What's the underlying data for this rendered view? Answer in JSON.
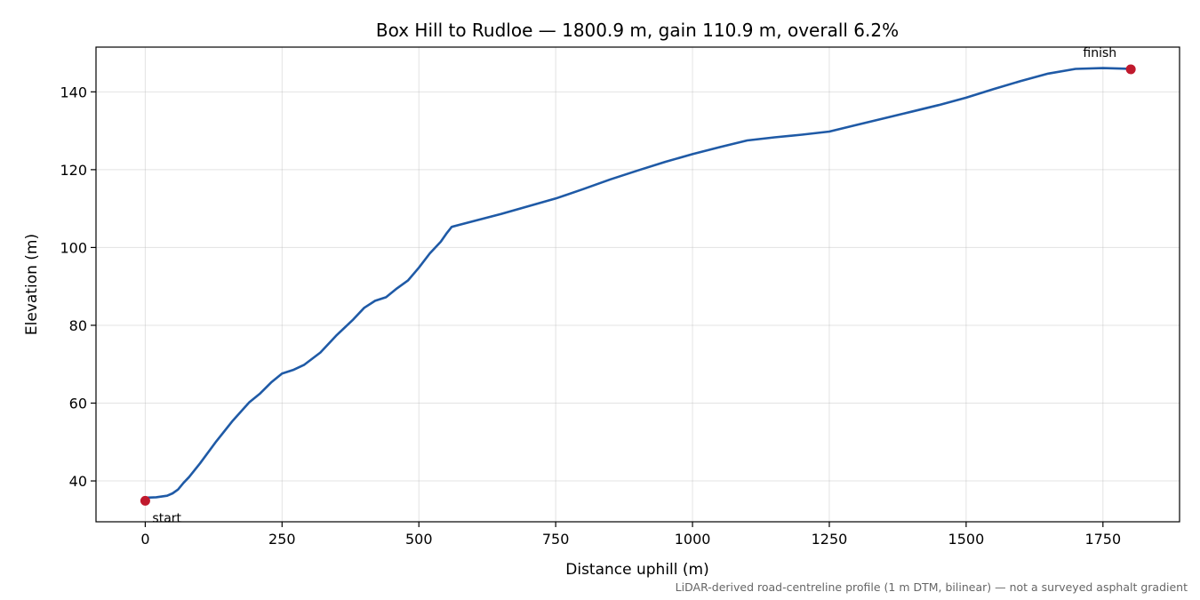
{
  "chart_data": {
    "type": "line",
    "title": "Box Hill to Rudloe — 1800.9 m, gain 110.9 m, overall 6.2%",
    "xlabel": "Distance uphill (m)",
    "ylabel": "Elevation (m)",
    "xlim": [
      -90,
      1890
    ],
    "ylim": [
      29.5,
      151.5
    ],
    "xticks": [
      0,
      250,
      500,
      750,
      1000,
      1250,
      1500,
      1750
    ],
    "yticks": [
      40,
      60,
      80,
      100,
      120,
      140
    ],
    "grid": true,
    "series": [
      {
        "color": "#1f5aa6",
        "x": [
          0,
          20,
          40,
          50,
          60,
          70,
          80,
          100,
          130,
          160,
          190,
          210,
          230,
          250,
          270,
          290,
          320,
          350,
          380,
          400,
          420,
          440,
          460,
          480,
          500,
          520,
          540,
          550,
          560,
          600,
          650,
          700,
          750,
          800,
          850,
          900,
          950,
          1000,
          1050,
          1100,
          1150,
          1200,
          1250,
          1300,
          1350,
          1400,
          1450,
          1500,
          1550,
          1600,
          1650,
          1700,
          1750,
          1800
        ],
        "y": [
          35.7,
          35.8,
          36.2,
          36.8,
          37.8,
          39.5,
          41,
          44.5,
          50.2,
          55.5,
          60.2,
          62.5,
          65.3,
          67.6,
          68.5,
          69.8,
          73,
          77.5,
          81.5,
          84.5,
          86.3,
          87.2,
          89.5,
          91.5,
          94.8,
          98.5,
          101.5,
          103.5,
          105.3,
          106.8,
          108.6,
          110.6,
          112.6,
          115,
          117.5,
          119.8,
          122,
          124,
          125.8,
          127.5,
          128.3,
          129,
          129.8,
          131.5,
          133.2,
          134.9,
          136.6,
          138.5,
          140.7,
          142.8,
          144.7,
          145.9,
          146.1,
          145.9
        ]
      }
    ],
    "markers": [
      {
        "label": "start",
        "x": 0,
        "y": 34.9,
        "color": "#c0192d"
      },
      {
        "label": "finish",
        "x": 1800.9,
        "y": 145.8,
        "color": "#c0192d"
      }
    ],
    "footnote": "LiDAR-derived road-centreline profile (1 m DTM, bilinear) — not a surveyed asphalt gradient"
  }
}
